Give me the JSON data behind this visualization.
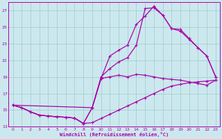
{
  "background_color": "#cce8ee",
  "line_color": "#aa00aa",
  "grid_color": "#99cccc",
  "xlabel": "Windchill (Refroidissement éolien,°C)",
  "xlim": [
    -0.5,
    23.5
  ],
  "ylim": [
    13,
    28
  ],
  "yticks": [
    13,
    15,
    17,
    19,
    21,
    23,
    25,
    27
  ],
  "xticks": [
    0,
    1,
    2,
    3,
    4,
    5,
    6,
    7,
    8,
    9,
    10,
    11,
    12,
    13,
    14,
    15,
    16,
    17,
    18,
    19,
    20,
    21,
    22,
    23
  ],
  "series": [
    {
      "x": [
        0,
        1,
        2,
        3,
        4,
        5,
        6,
        7,
        8,
        9,
        10,
        11,
        12,
        13,
        14,
        15,
        16,
        17,
        18,
        19,
        20,
        21,
        22,
        23
      ],
      "y": [
        15.6,
        15.3,
        14.8,
        14.4,
        14.3,
        14.2,
        14.15,
        14.05,
        13.4,
        13.5,
        14.0,
        14.5,
        15.0,
        15.5,
        16.0,
        16.5,
        17.0,
        17.5,
        17.9,
        18.1,
        18.3,
        18.4,
        18.5,
        18.6
      ]
    },
    {
      "x": [
        0,
        1,
        2,
        3,
        4,
        5,
        6,
        7,
        8,
        9,
        10,
        11,
        12,
        13,
        14,
        15,
        16,
        17,
        18,
        19,
        20,
        21,
        22,
        23
      ],
      "y": [
        15.6,
        15.3,
        14.8,
        14.4,
        14.3,
        14.2,
        14.15,
        14.05,
        13.4,
        15.3,
        18.8,
        19.0,
        19.2,
        19.0,
        19.3,
        19.2,
        19.0,
        18.8,
        18.7,
        18.6,
        18.4,
        18.2,
        18.0,
        18.6
      ]
    },
    {
      "x": [
        0,
        1,
        2,
        3,
        4,
        5,
        6,
        7,
        8,
        9,
        10,
        11,
        12,
        13,
        14,
        15,
        16,
        17,
        18,
        19,
        20,
        21,
        22,
        23
      ],
      "y": [
        15.6,
        15.3,
        14.8,
        14.4,
        14.3,
        14.2,
        14.15,
        14.05,
        13.4,
        15.3,
        18.8,
        21.5,
        22.2,
        22.8,
        25.3,
        26.3,
        27.5,
        26.4,
        24.8,
        24.7,
        23.6,
        22.5,
        21.5,
        19.0
      ]
    },
    {
      "x": [
        0,
        9,
        10,
        11,
        12,
        13,
        14,
        15,
        16,
        17,
        18,
        19,
        20,
        21,
        22,
        23
      ],
      "y": [
        15.6,
        15.3,
        19.0,
        20.0,
        20.8,
        21.3,
        22.8,
        27.2,
        27.3,
        26.4,
        24.8,
        24.5,
        23.5,
        22.5,
        21.5,
        19.0
      ]
    }
  ]
}
